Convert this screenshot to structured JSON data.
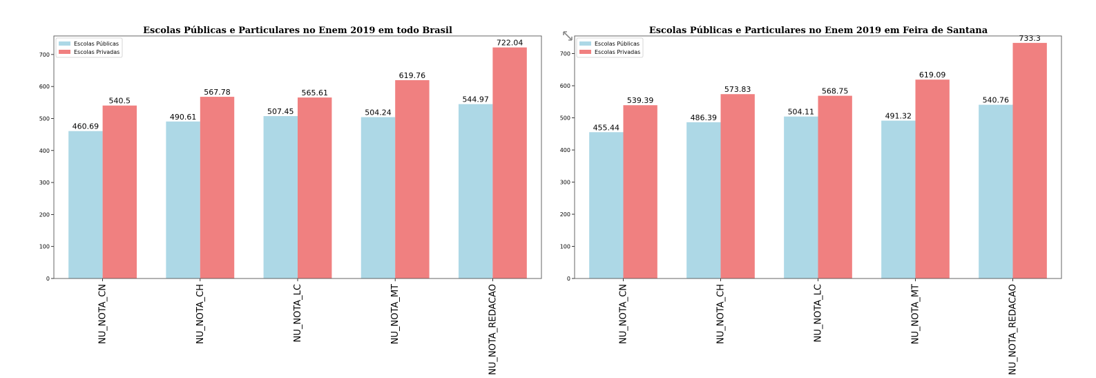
{
  "toolbar": {
    "expand_icon": "expand-arrows-icon"
  },
  "colors": {
    "public": "#add8e6",
    "private": "#f08080",
    "axis": "#555555"
  },
  "chart_data": [
    {
      "type": "bar",
      "title": "Escolas Públicas e Particulares no Enem 2019 em todo Brasil",
      "categories": [
        "NU_NOTA_CN",
        "NU_NOTA_CH",
        "NU_NOTA_LC",
        "NU_NOTA_MT",
        "NU_NOTA_REDACAO"
      ],
      "series": [
        {
          "name": "Escolas Públicas",
          "values": [
            460.69,
            490.61,
            507.45,
            504.24,
            544.97
          ]
        },
        {
          "name": "Escolas Privadas",
          "values": [
            540.5,
            567.78,
            565.61,
            619.76,
            722.04
          ]
        }
      ],
      "yticks": [
        0,
        100,
        200,
        300,
        400,
        500,
        600,
        700
      ],
      "ylim": [
        0,
        758
      ],
      "legend": "top-left",
      "grid": false
    },
    {
      "type": "bar",
      "title": "Escolas Públicas e Particulares no Enem 2019 em Feira de Santana",
      "categories": [
        "NU_NOTA_CN",
        "NU_NOTA_CH",
        "NU_NOTA_LC",
        "NU_NOTA_MT",
        "NU_NOTA_REDACAO"
      ],
      "series": [
        {
          "name": "Escolas Públicas",
          "values": [
            455.44,
            486.39,
            504.11,
            491.32,
            540.76
          ]
        },
        {
          "name": "Escolas Privadas",
          "values": [
            539.39,
            573.83,
            568.75,
            619.09,
            733.3
          ]
        }
      ],
      "yticks": [
        0,
        100,
        200,
        300,
        400,
        500,
        600,
        700
      ],
      "ylim": [
        0,
        755
      ],
      "legend": "top-left",
      "grid": false
    }
  ]
}
